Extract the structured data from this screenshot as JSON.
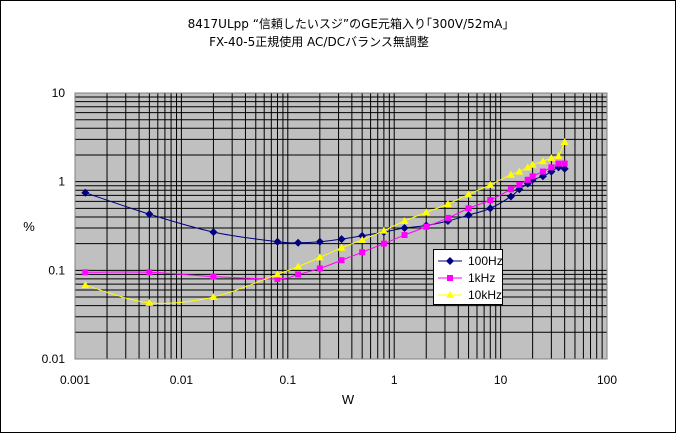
{
  "chart_data": {
    "type": "line",
    "title": "8417ULpp “信頼したいスジ”のGE元箱入り｢300V/52mA｣",
    "subtitle": "FX-40-5正規使用 AC/DCバランス無調整",
    "xlabel": "W",
    "ylabel": "%",
    "x_scale": "log",
    "y_scale": "log",
    "xlim": [
      0.001,
      100
    ],
    "ylim": [
      0.01,
      10
    ],
    "x_ticks": [
      "0.001",
      "0.01",
      "0.1",
      "1",
      "10",
      "100"
    ],
    "y_ticks": [
      "10",
      "1",
      "0.1",
      "0.01"
    ],
    "grid": true,
    "plot_background": "#c0c0c0",
    "legend_position": "right",
    "series": [
      {
        "name": "100Hz",
        "color": "#000080",
        "marker": "diamond",
        "x": [
          0.00125,
          0.005,
          0.02,
          0.08,
          0.125,
          0.2,
          0.32,
          0.5,
          0.8,
          1.25,
          2.0,
          3.2,
          5.0,
          8.0,
          12.5,
          15,
          18,
          20,
          25,
          30,
          35,
          40
        ],
        "y": [
          0.75,
          0.43,
          0.27,
          0.21,
          0.205,
          0.21,
          0.225,
          0.245,
          0.27,
          0.3,
          0.32,
          0.36,
          0.42,
          0.5,
          0.68,
          0.82,
          0.95,
          1.05,
          1.15,
          1.3,
          1.45,
          1.4
        ]
      },
      {
        "name": "1kHz",
        "color": "#ff00ff",
        "marker": "square",
        "x": [
          0.00125,
          0.005,
          0.02,
          0.08,
          0.125,
          0.2,
          0.32,
          0.5,
          0.8,
          1.25,
          2.0,
          3.2,
          5.0,
          8.0,
          12.5,
          15,
          18,
          20,
          25,
          30,
          35,
          40
        ],
        "y": [
          0.095,
          0.095,
          0.085,
          0.08,
          0.09,
          0.105,
          0.13,
          0.16,
          0.2,
          0.25,
          0.31,
          0.39,
          0.5,
          0.62,
          0.82,
          0.92,
          1.05,
          1.15,
          1.3,
          1.45,
          1.6,
          1.6
        ]
      },
      {
        "name": "10kHz",
        "color": "#ffff00",
        "marker": "triangle",
        "x": [
          0.00125,
          0.005,
          0.02,
          0.08,
          0.125,
          0.2,
          0.32,
          0.5,
          0.8,
          1.25,
          2.0,
          3.2,
          5.0,
          8.0,
          12.5,
          15,
          18,
          20,
          25,
          30,
          35,
          40
        ],
        "y": [
          0.068,
          0.043,
          0.05,
          0.09,
          0.11,
          0.14,
          0.18,
          0.22,
          0.28,
          0.36,
          0.45,
          0.56,
          0.72,
          0.92,
          1.2,
          1.3,
          1.45,
          1.55,
          1.7,
          1.85,
          1.95,
          2.8
        ]
      }
    ]
  }
}
